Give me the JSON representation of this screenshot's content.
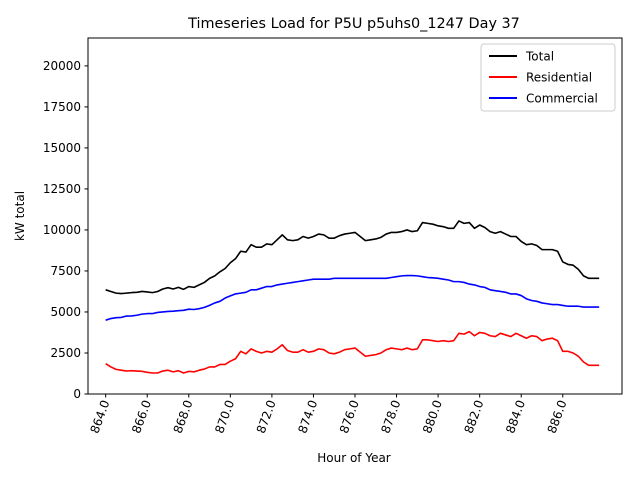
{
  "chart_data": {
    "type": "line",
    "title": "Timeseries Load for P5U p5uhs0_1247  Day 37",
    "xlabel": "Hour of Year",
    "ylabel": "kW total",
    "xlim": [
      863.15,
      888.85
    ],
    "ylim": [
      0,
      21700
    ],
    "xticks": [
      864,
      866,
      868,
      870,
      872,
      874,
      876,
      878,
      880,
      882,
      884,
      886
    ],
    "xtick_labels": [
      "864.0",
      "866.0",
      "868.0",
      "870.0",
      "872.0",
      "874.0",
      "876.0",
      "878.0",
      "880.0",
      "882.0",
      "884.0",
      "886.0"
    ],
    "yticks": [
      0,
      2500,
      5000,
      7500,
      10000,
      12500,
      15000,
      17500,
      20000
    ],
    "ytick_labels": [
      "0",
      "2500",
      "5000",
      "7500",
      "10000",
      "12500",
      "15000",
      "17500",
      "20000"
    ],
    "legend_position": "upper-right",
    "x": [
      864.0,
      864.25,
      864.5,
      864.75,
      865.0,
      865.25,
      865.5,
      865.75,
      866.0,
      866.25,
      866.5,
      866.75,
      867.0,
      867.25,
      867.5,
      867.75,
      868.0,
      868.25,
      868.5,
      868.75,
      869.0,
      869.25,
      869.5,
      869.75,
      870.0,
      870.25,
      870.5,
      870.75,
      871.0,
      871.25,
      871.5,
      871.75,
      872.0,
      872.25,
      872.5,
      872.75,
      873.0,
      873.25,
      873.5,
      873.75,
      874.0,
      874.25,
      874.5,
      874.75,
      875.0,
      875.25,
      875.5,
      875.75,
      876.0,
      876.25,
      876.5,
      876.75,
      877.0,
      877.25,
      877.5,
      877.75,
      878.0,
      878.25,
      878.5,
      878.75,
      879.0,
      879.25,
      879.5,
      879.75,
      880.0,
      880.25,
      880.5,
      880.75,
      881.0,
      881.25,
      881.5,
      881.75,
      882.0,
      882.25,
      882.5,
      882.75,
      883.0,
      883.25,
      883.5,
      883.75,
      884.0,
      884.25,
      884.5,
      884.75,
      885.0,
      885.25,
      885.5,
      885.75,
      886.0,
      886.25,
      886.5,
      886.75,
      887.0,
      887.25,
      887.5,
      887.75
    ],
    "series": [
      {
        "name": "Total",
        "color": "#000000",
        "values": [
          6350,
          6250,
          6150,
          6120,
          6150,
          6180,
          6200,
          6250,
          6220,
          6180,
          6250,
          6400,
          6480,
          6400,
          6500,
          6380,
          6550,
          6500,
          6650,
          6800,
          7050,
          7200,
          7450,
          7650,
          8000,
          8250,
          8700,
          8650,
          9100,
          8950,
          8950,
          9150,
          9100,
          9400,
          9700,
          9400,
          9350,
          9400,
          9600,
          9500,
          9600,
          9750,
          9700,
          9500,
          9500,
          9650,
          9750,
          9800,
          9850,
          9600,
          9350,
          9400,
          9450,
          9550,
          9750,
          9850,
          9850,
          9900,
          10000,
          9900,
          9950,
          10450,
          10400,
          10350,
          10250,
          10200,
          10100,
          10100,
          10550,
          10400,
          10450,
          10100,
          10300,
          10150,
          9900,
          9800,
          9900,
          9750,
          9600,
          9600,
          9300,
          9100,
          9150,
          9050,
          8800,
          8800,
          8800,
          8700,
          8050,
          7900,
          7850,
          7600,
          7200,
          7050,
          7050,
          7050
        ]
      },
      {
        "name": "Residential",
        "color": "#ff0000",
        "values": [
          1850,
          1650,
          1500,
          1450,
          1400,
          1420,
          1400,
          1380,
          1320,
          1280,
          1280,
          1400,
          1450,
          1350,
          1420,
          1280,
          1380,
          1350,
          1450,
          1520,
          1650,
          1650,
          1800,
          1800,
          2000,
          2150,
          2600,
          2450,
          2750,
          2600,
          2500,
          2600,
          2550,
          2750,
          3000,
          2650,
          2550,
          2550,
          2700,
          2550,
          2600,
          2750,
          2700,
          2500,
          2450,
          2550,
          2700,
          2750,
          2800,
          2550,
          2300,
          2350,
          2400,
          2500,
          2700,
          2800,
          2750,
          2700,
          2800,
          2700,
          2750,
          3300,
          3300,
          3250,
          3200,
          3250,
          3200,
          3250,
          3700,
          3650,
          3800,
          3550,
          3750,
          3700,
          3550,
          3500,
          3700,
          3600,
          3500,
          3700,
          3550,
          3400,
          3550,
          3500,
          3250,
          3350,
          3400,
          3250,
          2600,
          2600,
          2500,
          2300,
          1950,
          1750,
          1750,
          1750
        ]
      },
      {
        "name": "Commercial",
        "color": "#0000ff",
        "values": [
          4500,
          4600,
          4650,
          4670,
          4750,
          4760,
          4800,
          4870,
          4900,
          4900,
          4970,
          5000,
          5030,
          5050,
          5080,
          5100,
          5170,
          5150,
          5200,
          5280,
          5400,
          5550,
          5650,
          5850,
          5980,
          6100,
          6150,
          6200,
          6350,
          6350,
          6450,
          6550,
          6550,
          6650,
          6700,
          6750,
          6800,
          6850,
          6900,
          6950,
          7000,
          7000,
          7000,
          7000,
          7050,
          7050,
          7050,
          7050,
          7050,
          7050,
          7050,
          7050,
          7050,
          7050,
          7050,
          7100,
          7150,
          7200,
          7220,
          7220,
          7200,
          7150,
          7100,
          7080,
          7050,
          7000,
          6950,
          6850,
          6850,
          6800,
          6700,
          6650,
          6550,
          6500,
          6350,
          6300,
          6250,
          6200,
          6100,
          6100,
          6000,
          5800,
          5700,
          5650,
          5550,
          5500,
          5450,
          5450,
          5400,
          5350,
          5350,
          5350,
          5300,
          5300,
          5300,
          5300
        ]
      }
    ]
  }
}
